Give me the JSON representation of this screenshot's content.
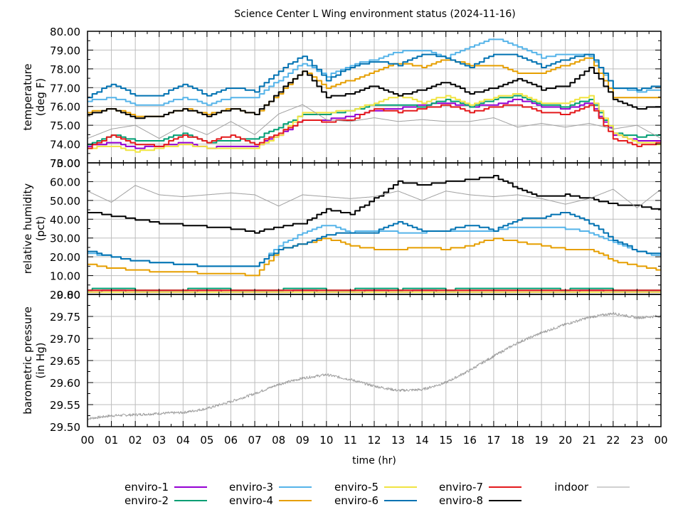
{
  "chart_data": [
    {
      "type": "line",
      "title": "Science Center L Wing environment status (2024-11-16)",
      "panel": "temperature",
      "ylabel": [
        "temperature",
        "(deg F)"
      ],
      "ylim": [
        73,
        80
      ],
      "yticks": [
        "80.00",
        "79.00",
        "78.00",
        "77.00",
        "76.00",
        "75.00",
        "74.00",
        "73.00"
      ],
      "x": [
        0,
        1,
        2,
        3,
        4,
        5,
        6,
        7,
        8,
        9,
        10,
        11,
        12,
        13,
        14,
        15,
        16,
        17,
        18,
        19,
        20,
        21,
        22,
        23,
        24
      ],
      "series": [
        {
          "name": "enviro-1",
          "color": "#9400d3",
          "values": [
            73.9,
            74.1,
            73.8,
            73.9,
            74.1,
            73.8,
            73.9,
            73.9,
            74.5,
            75.3,
            75.3,
            75.5,
            75.8,
            75.9,
            76.1,
            76.2,
            76.0,
            76.1,
            76.4,
            76.0,
            75.9,
            76.2,
            74.5,
            74.2,
            74.2
          ]
        },
        {
          "name": "enviro-2",
          "color": "#009e73",
          "values": [
            74.0,
            74.5,
            74.2,
            74.2,
            74.6,
            74.1,
            74.2,
            74.3,
            74.9,
            75.6,
            75.6,
            75.8,
            76.1,
            76.1,
            76.0,
            76.4,
            76.0,
            76.4,
            76.6,
            76.1,
            76.0,
            76.4,
            74.6,
            74.4,
            74.5
          ]
        },
        {
          "name": "enviro-3",
          "color": "#56b4e9",
          "values": [
            76.3,
            76.5,
            76.1,
            76.1,
            76.5,
            76.1,
            76.5,
            76.5,
            77.4,
            78.3,
            77.6,
            78.2,
            78.5,
            78.9,
            79.0,
            78.6,
            79.2,
            79.6,
            79.2,
            78.6,
            78.8,
            78.7,
            77.0,
            76.8,
            76.9
          ]
        },
        {
          "name": "enviro-4",
          "color": "#e69f00",
          "values": [
            75.7,
            75.9,
            75.5,
            75.5,
            75.9,
            75.6,
            75.9,
            75.6,
            76.7,
            77.9,
            77.0,
            77.4,
            77.9,
            78.3,
            78.1,
            78.5,
            78.2,
            78.2,
            77.8,
            77.8,
            78.2,
            78.6,
            76.5,
            76.5,
            76.5
          ]
        },
        {
          "name": "enviro-5",
          "color": "#f0e442",
          "values": [
            73.8,
            73.9,
            73.6,
            73.8,
            74.0,
            73.8,
            73.8,
            73.8,
            74.5,
            75.7,
            75.7,
            75.8,
            76.2,
            76.6,
            76.2,
            76.6,
            76.1,
            76.5,
            76.7,
            76.2,
            76.2,
            76.6,
            74.6,
            74.1,
            74.0
          ]
        },
        {
          "name": "enviro-6",
          "color": "#0072b2",
          "values": [
            76.5,
            77.2,
            76.6,
            76.6,
            77.2,
            76.6,
            77.0,
            76.8,
            77.9,
            78.7,
            77.4,
            78.1,
            78.4,
            78.2,
            78.8,
            78.6,
            78.1,
            78.8,
            78.7,
            78.1,
            78.5,
            78.8,
            77.0,
            76.9,
            77.1
          ]
        },
        {
          "name": "enviro-7",
          "color": "#e41a1c",
          "values": [
            73.8,
            74.5,
            74.0,
            73.9,
            74.5,
            74.1,
            74.5,
            74.0,
            74.6,
            75.3,
            75.2,
            75.3,
            75.9,
            75.7,
            75.9,
            76.1,
            75.7,
            76.0,
            76.1,
            75.7,
            75.6,
            76.1,
            74.3,
            73.9,
            74.1
          ]
        },
        {
          "name": "enviro-8",
          "color": "#000000",
          "values": [
            75.6,
            75.9,
            75.4,
            75.5,
            75.9,
            75.5,
            75.9,
            75.6,
            76.8,
            77.9,
            76.5,
            76.7,
            77.1,
            76.6,
            76.9,
            77.3,
            76.7,
            77.0,
            77.5,
            76.9,
            77.1,
            78.1,
            76.4,
            75.9,
            76.0
          ]
        },
        {
          "name": "indoor",
          "color": "#a0a0a0",
          "values": [
            74.3,
            74.8,
            75.0,
            74.3,
            75.0,
            74.5,
            75.2,
            74.5,
            75.6,
            76.1,
            75.3,
            75.2,
            75.4,
            75.2,
            75.3,
            75.2,
            75.2,
            75.4,
            74.9,
            75.1,
            74.9,
            75.1,
            74.8,
            75.0,
            74.3
          ]
        }
      ]
    },
    {
      "type": "line",
      "panel": "humidity",
      "ylabel": [
        "relative humidity",
        "(pct)"
      ],
      "ylim": [
        0,
        70
      ],
      "yticks": [
        "70.00",
        "60.00",
        "50.00",
        "40.00",
        "30.00",
        "20.00",
        "10.00",
        "0.00"
      ],
      "x": [
        0,
        1,
        2,
        3,
        4,
        5,
        6,
        7,
        8,
        9,
        10,
        11,
        12,
        13,
        14,
        15,
        16,
        17,
        18,
        19,
        20,
        21,
        22,
        23,
        24
      ],
      "series": [
        {
          "name": "enviro-1",
          "color": "#9400d3",
          "values": [
            1.5,
            2.0,
            1.5,
            1.5,
            1.5,
            2.0,
            1.5,
            1.5,
            1.5,
            2.0,
            1.5,
            1.5,
            2.0,
            1.5,
            2.0,
            1.5,
            1.5,
            1.5,
            1.5,
            1.5,
            1.5,
            2.0,
            1.5,
            1.5,
            1.5
          ]
        },
        {
          "name": "enviro-2",
          "color": "#009e73",
          "values": [
            2.5,
            3.5,
            2.5,
            2.5,
            2.5,
            3.5,
            2.5,
            2.5,
            2.5,
            3.5,
            2.5,
            2.5,
            3.5,
            2.5,
            3.5,
            2.5,
            3.0,
            3.0,
            3.0,
            3.0,
            2.5,
            3.5,
            2.5,
            2.5,
            2.5
          ]
        },
        {
          "name": "enviro-3",
          "color": "#56b4e9",
          "values": [
            22,
            20,
            18,
            17,
            16,
            15,
            15,
            15,
            26,
            33,
            37,
            33,
            34,
            33,
            33,
            34,
            34,
            34,
            36,
            36,
            35,
            33,
            28,
            23,
            20
          ]
        },
        {
          "name": "enviro-4",
          "color": "#e69f00",
          "values": [
            16,
            14,
            13,
            12,
            12,
            11,
            11,
            10,
            24,
            27,
            30,
            26,
            24,
            24,
            25,
            24,
            26,
            30,
            28,
            26,
            24,
            24,
            18,
            15,
            13
          ]
        },
        {
          "name": "enviro-5",
          "color": "#f0e442",
          "values": [
            0.8,
            1.2,
            0.8,
            0.8,
            0.8,
            1.2,
            0.8,
            0.8,
            0.8,
            1.2,
            0.8,
            0.8,
            1.2,
            0.8,
            1.2,
            0.8,
            0.8,
            0.8,
            0.8,
            0.8,
            0.8,
            1.2,
            0.8,
            0.8,
            0.8
          ]
        },
        {
          "name": "enviro-6",
          "color": "#0072b2",
          "values": [
            23,
            20,
            18,
            17,
            16,
            15,
            15,
            15,
            24,
            27,
            32,
            33,
            33,
            39,
            34,
            34,
            37,
            34,
            40,
            41,
            44,
            38,
            29,
            23,
            21
          ]
        },
        {
          "name": "enviro-7",
          "color": "#e41a1c",
          "values": [
            2.5,
            2.5,
            2.5,
            2.5,
            2.5,
            2.5,
            2.5,
            2.5,
            2.5,
            2.5,
            2.5,
            2.5,
            2.5,
            2.5,
            2.5,
            2.5,
            2.5,
            2.5,
            2.5,
            2.5,
            2.5,
            2.5,
            2.5,
            2.5,
            2.5
          ]
        },
        {
          "name": "enviro-8",
          "color": "#000000",
          "values": [
            44,
            42,
            40,
            38,
            37,
            36,
            35,
            33,
            36,
            38,
            45,
            43,
            51,
            60,
            58,
            60,
            61,
            63,
            56,
            52,
            53,
            51,
            48,
            47,
            45
          ]
        },
        {
          "name": "indoor",
          "color": "#a0a0a0",
          "values": [
            55,
            49,
            58,
            53,
            52,
            53,
            54,
            53,
            47,
            53,
            52,
            51,
            52,
            55,
            50,
            55,
            53,
            52,
            53,
            51,
            48,
            51,
            56,
            46,
            56
          ]
        }
      ]
    },
    {
      "type": "line",
      "panel": "pressure",
      "ylabel": [
        "barometric pressure",
        "(in Hg)"
      ],
      "ylim": [
        29.5,
        29.8
      ],
      "yticks": [
        "29.80",
        "29.75",
        "29.70",
        "29.65",
        "29.60",
        "29.55",
        "29.50"
      ],
      "xlabel": "time (hr)",
      "xticks": [
        "00",
        "01",
        "02",
        "03",
        "04",
        "05",
        "06",
        "07",
        "08",
        "09",
        "10",
        "11",
        "12",
        "13",
        "14",
        "15",
        "16",
        "17",
        "18",
        "19",
        "20",
        "21",
        "22",
        "23",
        "00"
      ],
      "x": [
        0,
        1,
        2,
        3,
        4,
        5,
        6,
        7,
        8,
        9,
        10,
        11,
        12,
        13,
        14,
        15,
        16,
        17,
        18,
        19,
        20,
        21,
        22,
        23,
        24
      ],
      "series": [
        {
          "name": "indoor",
          "color": "#a0a0a0",
          "values": [
            29.518,
            29.525,
            29.527,
            29.53,
            29.532,
            29.541,
            29.557,
            29.575,
            29.596,
            29.61,
            29.618,
            29.607,
            29.592,
            29.582,
            29.584,
            29.6,
            29.628,
            29.66,
            29.69,
            29.713,
            29.732,
            29.748,
            29.757,
            29.747,
            29.751
          ]
        }
      ]
    }
  ],
  "legend": {
    "position": "bottom",
    "entries": [
      {
        "label": "enviro-1",
        "color": "#9400d3"
      },
      {
        "label": "enviro-2",
        "color": "#009e73"
      },
      {
        "label": "enviro-3",
        "color": "#56b4e9"
      },
      {
        "label": "enviro-4",
        "color": "#e69f00"
      },
      {
        "label": "enviro-5",
        "color": "#f0e442"
      },
      {
        "label": "enviro-6",
        "color": "#0072b2"
      },
      {
        "label": "enviro-7",
        "color": "#e41a1c"
      },
      {
        "label": "enviro-8",
        "color": "#000000"
      },
      {
        "label": "indoor",
        "color": "#a0a0a0"
      }
    ]
  }
}
